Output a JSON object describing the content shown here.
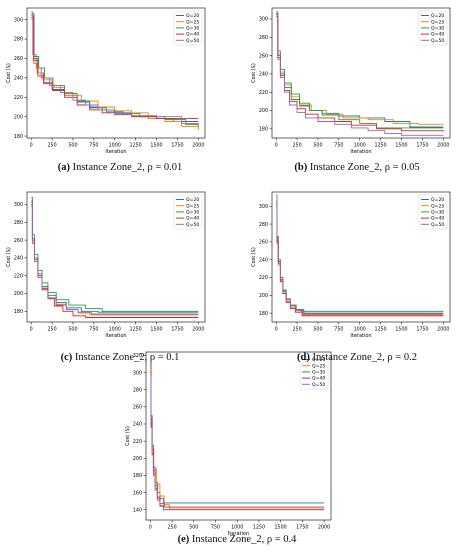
{
  "colors": {
    "Q=20": "#1f77b4",
    "Q=25": "#ff7f0e",
    "Q=30": "#2ca02c",
    "Q=40": "#d62728",
    "Q=50": "#9467bd"
  },
  "chart_data": [
    {
      "type": "line",
      "caption_label": "(a)",
      "caption_text": "Instance Zone_2, ρ = 0.01",
      "xlabel": "Iteration",
      "ylabel": "Cost ($)",
      "xlim": [
        -50,
        2080
      ],
      "ylim": [
        178,
        312
      ],
      "xticks": [
        0,
        250,
        500,
        750,
        1000,
        1250,
        1500,
        1750,
        2000
      ],
      "yticks": [
        180,
        200,
        220,
        240,
        260,
        280,
        300
      ],
      "legend_position": "top-right",
      "series": [
        {
          "name": "Q=20",
          "x": [
            0,
            30,
            80,
            150,
            250,
            400,
            550,
            700,
            850,
            1000,
            1200,
            1500,
            1700,
            2000
          ],
          "y": [
            302,
            260,
            245,
            235,
            228,
            222,
            215,
            210,
            207,
            204,
            200,
            198,
            195,
            195
          ]
        },
        {
          "name": "Q=25",
          "x": [
            0,
            25,
            70,
            140,
            250,
            400,
            600,
            800,
            1000,
            1200,
            1400,
            1600,
            1800,
            2000
          ],
          "y": [
            300,
            255,
            245,
            238,
            230,
            222,
            216,
            210,
            206,
            204,
            198,
            195,
            190,
            186
          ]
        },
        {
          "name": "Q=30",
          "x": [
            0,
            35,
            90,
            160,
            260,
            400,
            550,
            700,
            900,
            1100,
            1300,
            1600,
            1850,
            2000
          ],
          "y": [
            306,
            262,
            250,
            240,
            232,
            224,
            216,
            209,
            205,
            203,
            200,
            197,
            192,
            190
          ]
        },
        {
          "name": "Q=40",
          "x": [
            0,
            30,
            80,
            150,
            260,
            400,
            550,
            700,
            850,
            1000,
            1200,
            1500,
            2000
          ],
          "y": [
            304,
            258,
            242,
            234,
            227,
            220,
            212,
            207,
            204,
            202,
            200,
            198,
            198
          ]
        },
        {
          "name": "Q=50",
          "x": [
            0,
            20,
            60,
            120,
            220,
            350,
            500,
            650,
            800,
            1000,
            1200,
            1500,
            1800,
            2000
          ],
          "y": [
            308,
            264,
            250,
            240,
            232,
            225,
            217,
            212,
            207,
            203,
            201,
            200,
            193,
            192
          ]
        }
      ]
    },
    {
      "type": "line",
      "caption_label": "(b)",
      "caption_text": "Instance Zone_2, ρ = 0.05",
      "xlabel": "Iteration",
      "ylabel": "Cost ($)",
      "xlim": [
        -50,
        2080
      ],
      "ylim": [
        170,
        312
      ],
      "xticks": [
        0,
        250,
        500,
        750,
        1000,
        1250,
        1500,
        1750,
        2000
      ],
      "yticks": [
        180,
        200,
        220,
        240,
        260,
        280,
        300
      ],
      "legend_position": "top-right",
      "series": [
        {
          "name": "Q=20",
          "x": [
            0,
            20,
            50,
            100,
            180,
            280,
            400,
            550,
            750,
            1000,
            1300,
            1600,
            2000
          ],
          "y": [
            305,
            260,
            240,
            225,
            212,
            205,
            200,
            197,
            194,
            192,
            188,
            182,
            182
          ]
        },
        {
          "name": "Q=25",
          "x": [
            0,
            20,
            50,
            100,
            180,
            280,
            420,
            600,
            800,
            1100,
            1400,
            1700,
            2000
          ],
          "y": [
            302,
            262,
            242,
            228,
            215,
            206,
            200,
            196,
            192,
            190,
            186,
            185,
            185
          ]
        },
        {
          "name": "Q=30",
          "x": [
            0,
            20,
            50,
            100,
            180,
            280,
            400,
            550,
            750,
            1000,
            1200,
            2000
          ],
          "y": [
            306,
            265,
            245,
            230,
            218,
            208,
            200,
            195,
            190,
            186,
            181,
            181
          ]
        },
        {
          "name": "Q=40",
          "x": [
            0,
            20,
            50,
            100,
            160,
            250,
            350,
            500,
            700,
            900,
            1200,
            1500,
            2000
          ],
          "y": [
            303,
            258,
            238,
            222,
            210,
            202,
            196,
            192,
            188,
            184,
            180,
            178,
            177
          ]
        },
        {
          "name": "Q=50",
          "x": [
            0,
            20,
            50,
            100,
            160,
            250,
            350,
            500,
            700,
            900,
            1100,
            1300,
            1500,
            2000
          ],
          "y": [
            308,
            256,
            236,
            220,
            206,
            198,
            192,
            188,
            185,
            181,
            178,
            175,
            173,
            173
          ]
        }
      ]
    },
    {
      "type": "line",
      "caption_label": "(c)",
      "caption_text": "Instance Zone_2, ρ = 0.1",
      "xlabel": "Iteration",
      "ylabel": "Cost ($)",
      "xlim": [
        -50,
        2080
      ],
      "ylim": [
        168,
        314
      ],
      "xticks": [
        0,
        250,
        500,
        750,
        1000,
        1250,
        1500,
        1750,
        2000
      ],
      "yticks": [
        180,
        200,
        220,
        240,
        260,
        280,
        300
      ],
      "legend_position": "top-right",
      "series": [
        {
          "name": "Q=20",
          "x": [
            0,
            15,
            40,
            80,
            130,
            200,
            300,
            420,
            600,
            800,
            2000
          ],
          "y": [
            300,
            262,
            240,
            222,
            208,
            198,
            190,
            184,
            180,
            179,
            179
          ]
        },
        {
          "name": "Q=25",
          "x": [
            0,
            15,
            40,
            80,
            130,
            200,
            300,
            420,
            560,
            700,
            2000
          ],
          "y": [
            298,
            258,
            236,
            218,
            205,
            195,
            188,
            182,
            178,
            176,
            176
          ]
        },
        {
          "name": "Q=30",
          "x": [
            0,
            15,
            40,
            80,
            130,
            200,
            300,
            450,
            650,
            850,
            2000
          ],
          "y": [
            308,
            266,
            244,
            226,
            212,
            201,
            193,
            187,
            183,
            180,
            180
          ]
        },
        {
          "name": "Q=40",
          "x": [
            0,
            15,
            40,
            80,
            130,
            200,
            280,
            380,
            500,
            650,
            2000
          ],
          "y": [
            304,
            260,
            238,
            220,
            206,
            195,
            186,
            180,
            175,
            173,
            173
          ]
        },
        {
          "name": "Q=50",
          "x": [
            0,
            15,
            40,
            80,
            130,
            200,
            300,
            420,
            560,
            720,
            2000
          ],
          "y": [
            302,
            256,
            236,
            218,
            204,
            194,
            187,
            182,
            179,
            177,
            177
          ]
        }
      ]
    },
    {
      "type": "line",
      "caption_label": "(d)",
      "caption_text": "Instance Zone_2, ρ = 0.2",
      "xlabel": "Iteration",
      "ylabel": "Cost ($)",
      "xlim": [
        -50,
        2080
      ],
      "ylim": [
        170,
        316
      ],
      "xticks": [
        0,
        250,
        500,
        750,
        1000,
        1250,
        1500,
        1750,
        2000
      ],
      "yticks": [
        180,
        200,
        220,
        240,
        260,
        280,
        300
      ],
      "legend_position": "top-right",
      "series": [
        {
          "name": "Q=20",
          "x": [
            0,
            10,
            25,
            50,
            80,
            120,
            170,
            230,
            300,
            2000
          ],
          "y": [
            302,
            262,
            238,
            218,
            204,
            195,
            188,
            184,
            182,
            182
          ]
        },
        {
          "name": "Q=25",
          "x": [
            0,
            10,
            25,
            50,
            80,
            120,
            170,
            230,
            320,
            2000
          ],
          "y": [
            300,
            258,
            234,
            215,
            202,
            193,
            186,
            181,
            178,
            178
          ]
        },
        {
          "name": "Q=30",
          "x": [
            0,
            10,
            25,
            50,
            80,
            120,
            170,
            240,
            330,
            2000
          ],
          "y": [
            306,
            265,
            240,
            220,
            206,
            196,
            189,
            184,
            180,
            180
          ]
        },
        {
          "name": "Q=40",
          "x": [
            0,
            10,
            25,
            50,
            80,
            120,
            170,
            230,
            310,
            2000
          ],
          "y": [
            304,
            260,
            236,
            216,
            202,
            192,
            185,
            181,
            177,
            177
          ]
        },
        {
          "name": "Q=50",
          "x": [
            0,
            10,
            25,
            50,
            80,
            120,
            170,
            240,
            330,
            2000
          ],
          "y": [
            313,
            266,
            240,
            220,
            205,
            195,
            188,
            183,
            179,
            179
          ]
        }
      ]
    },
    {
      "type": "line",
      "caption_label": "(e)",
      "caption_text": "Instance Zone_2, ρ = 0.4",
      "xlabel": "Iteration",
      "ylabel": "Cost ($)",
      "xlim": [
        -50,
        2080
      ],
      "ylim": [
        128,
        324
      ],
      "xticks": [
        0,
        250,
        500,
        750,
        1000,
        1250,
        1500,
        1750,
        2000
      ],
      "yticks": [
        140,
        160,
        180,
        200,
        220,
        240,
        260,
        280,
        300,
        320
      ],
      "legend_position": "top-right",
      "series": [
        {
          "name": "Q=20",
          "x": [
            0,
            8,
            20,
            35,
            55,
            80,
            110,
            150,
            2000
          ],
          "y": [
            318,
            250,
            215,
            190,
            172,
            160,
            153,
            148,
            148
          ]
        },
        {
          "name": "Q=25",
          "x": [
            0,
            8,
            20,
            40,
            70,
            110,
            160,
            220,
            2000
          ],
          "y": [
            305,
            245,
            212,
            188,
            170,
            156,
            146,
            141,
            141
          ]
        },
        {
          "name": "Q=30",
          "x": [
            0,
            8,
            20,
            35,
            55,
            80,
            110,
            150,
            2000
          ],
          "y": [
            300,
            238,
            205,
            182,
            165,
            153,
            145,
            140,
            140
          ]
        },
        {
          "name": "Q=40",
          "x": [
            0,
            8,
            20,
            35,
            55,
            80,
            110,
            160,
            2000
          ],
          "y": [
            310,
            246,
            210,
            186,
            168,
            155,
            147,
            143,
            143
          ]
        },
        {
          "name": "Q=50",
          "x": [
            0,
            8,
            20,
            35,
            55,
            80,
            110,
            150,
            2000
          ],
          "y": [
            296,
            236,
            204,
            180,
            163,
            151,
            144,
            140,
            140
          ]
        }
      ]
    }
  ]
}
